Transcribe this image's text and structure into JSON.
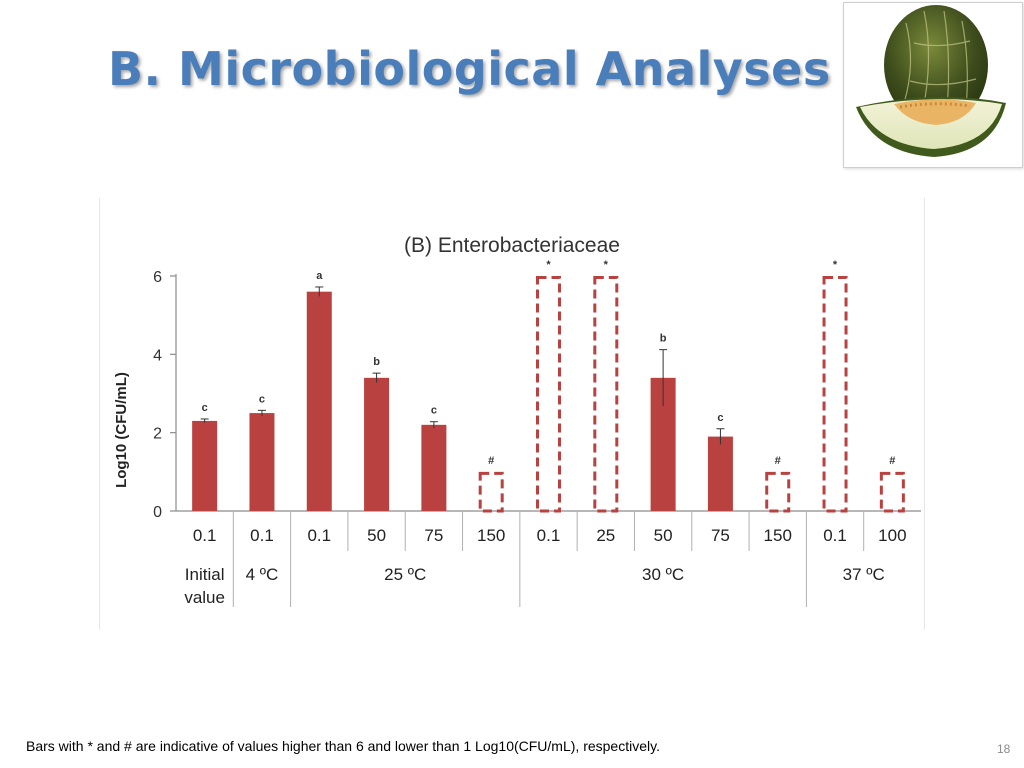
{
  "slide": {
    "title": "B. Microbiological Analyses",
    "footnote": "Bars with * and # are indicative of values  higher than 6 and lower than 1 Log10(CFU/mL), respectively.",
    "page_number": "18"
  },
  "image": {
    "icon": "melon-icon"
  },
  "colors": {
    "bar": "#B9413F",
    "axis": "#8c8c8c",
    "title": "#4A7EBB"
  },
  "chart_data": {
    "type": "bar",
    "title": "(B) Enterobacteriaceae",
    "ylabel": "Log10 (CFU/mL)",
    "xlabel": "",
    "ylim": [
      0,
      6
    ],
    "yticks": [
      "0",
      "2",
      "4",
      "6"
    ],
    "categories": [
      "0.1",
      "0.1",
      "0.1",
      "50",
      "75",
      "150",
      "0.1",
      "25",
      "50",
      "75",
      "150",
      "0.1",
      "100"
    ],
    "values": [
      2.3,
      2.5,
      5.6,
      3.4,
      2.2,
      1.0,
      6.0,
      6.0,
      3.4,
      1.9,
      1.0,
      6.0,
      1.0
    ],
    "errors": [
      0.05,
      0.07,
      0.12,
      0.12,
      0.08,
      0,
      0,
      0,
      0.72,
      0.2,
      0,
      0,
      0
    ],
    "styles": [
      "solid",
      "solid",
      "solid",
      "solid",
      "solid",
      "dashed",
      "dashed",
      "dashed",
      "solid",
      "solid",
      "dashed",
      "dashed",
      "dashed"
    ],
    "annotations": [
      "c",
      "c",
      "a",
      "b",
      "c",
      "#",
      "*",
      "*",
      "b",
      "c",
      "#",
      "*",
      "#"
    ],
    "groups": [
      {
        "label": [
          "Initial",
          "value"
        ],
        "span": 1
      },
      {
        "label": [
          "4 ºC"
        ],
        "span": 1
      },
      {
        "label": [
          "25 ºC"
        ],
        "span": 4
      },
      {
        "label": [
          "30 ºC"
        ],
        "span": 5
      },
      {
        "label": [
          "37 ºC"
        ],
        "span": 2
      }
    ],
    "grid": false,
    "legend": "none"
  }
}
